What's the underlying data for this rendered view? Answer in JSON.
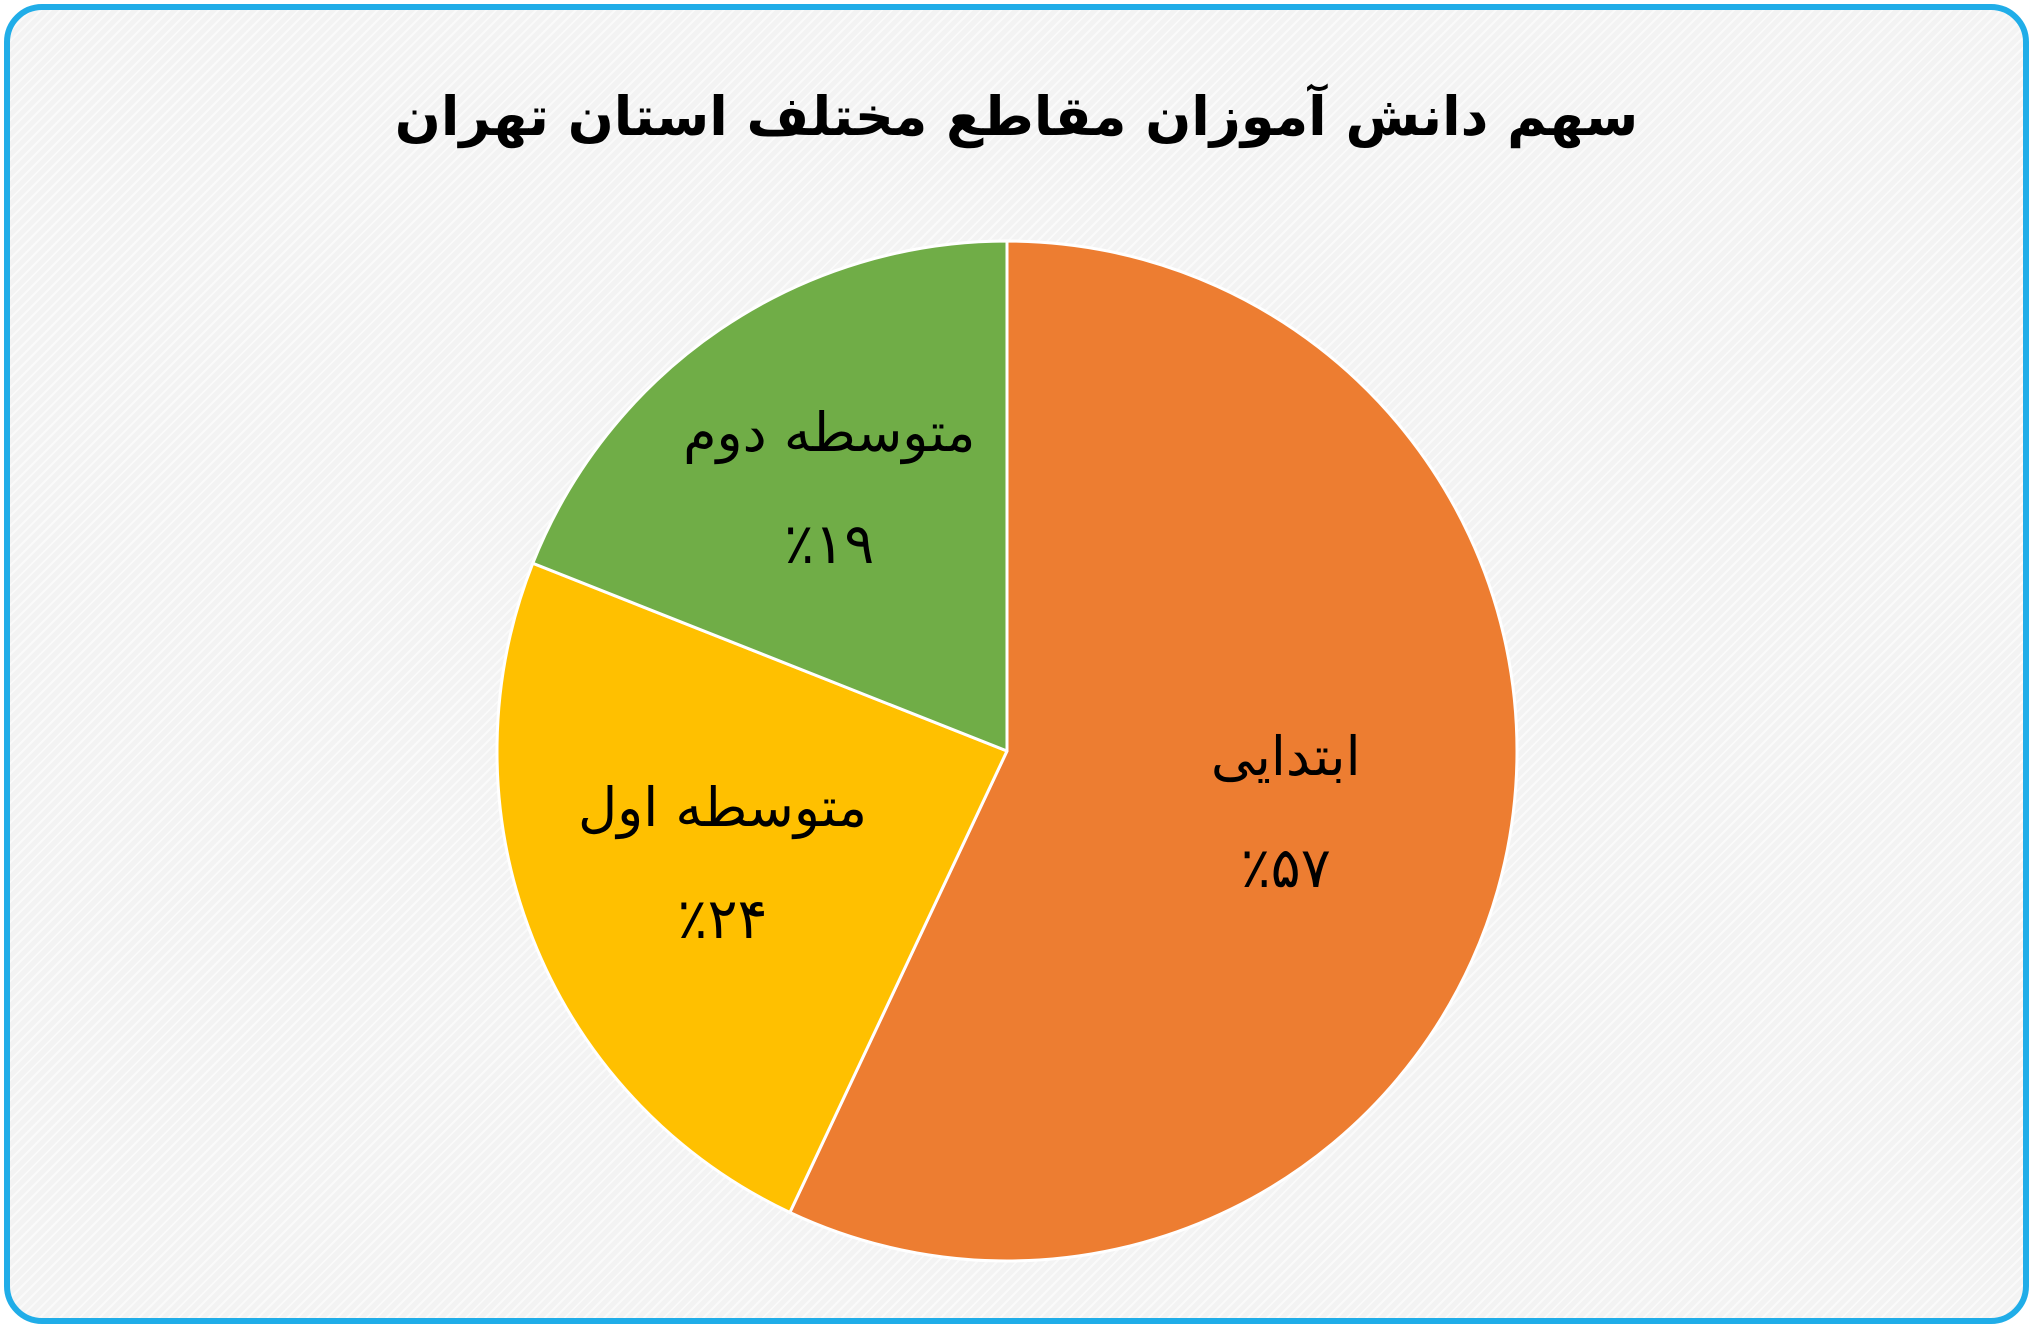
{
  "chart_data": {
    "type": "pie",
    "title": "سهم دانش آموزان مقاطع مختلف استان تهران",
    "categories": [
      "ابتدایی",
      "متوسطه اول",
      "متوسطه دوم"
    ],
    "values": [
      57,
      24,
      19
    ],
    "value_labels": [
      "٪۵۷",
      "٪۲۴",
      "٪۱۹"
    ],
    "colors": [
      "#ed7d31",
      "#ffc000",
      "#70ad47"
    ],
    "legend": "none",
    "start_angle": "12 o'clock, clockwise"
  }
}
